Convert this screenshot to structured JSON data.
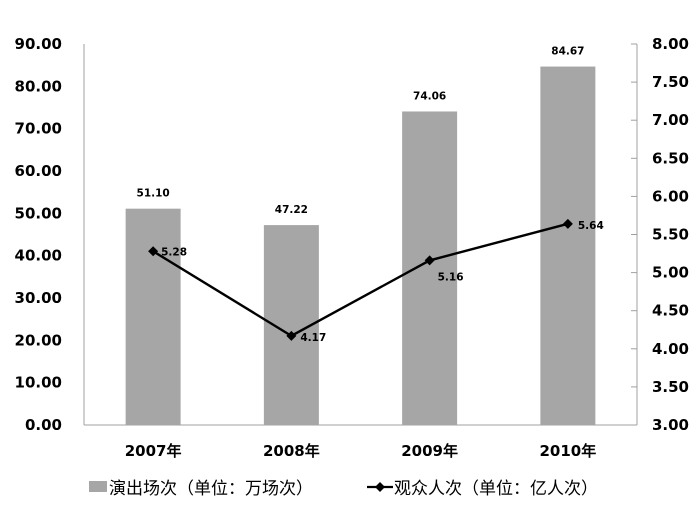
{
  "chart_data": {
    "type": "bar+line",
    "title": "",
    "categories": [
      "2007年",
      "2008年",
      "2009年",
      "2010年"
    ],
    "series": [
      {
        "name": "演出场次（单位：万场次）",
        "type": "bar",
        "axis": "left",
        "values": [
          51.1,
          47.22,
          74.06,
          84.67
        ],
        "labels": [
          "51.10",
          "47.22",
          "74.06",
          "84.67"
        ],
        "color": "#a6a6a6"
      },
      {
        "name": "观众人次（单位：亿人次）",
        "type": "line",
        "axis": "right",
        "marker": "diamond",
        "values": [
          5.28,
          4.17,
          5.16,
          5.64
        ],
        "labels": [
          "5.28",
          "4.17",
          "5.16",
          "5.64"
        ],
        "color": "#000000"
      }
    ],
    "left_axis": {
      "ylim": [
        0,
        90
      ],
      "ticks": [
        "0.00",
        "10.00",
        "20.00",
        "30.00",
        "40.00",
        "50.00",
        "60.00",
        "70.00",
        "80.00",
        "90.00"
      ]
    },
    "right_axis": {
      "ylim": [
        3,
        8
      ],
      "ticks": [
        "3.00",
        "3.50",
        "4.00",
        "4.50",
        "5.00",
        "5.50",
        "6.00",
        "6.50",
        "7.00",
        "7.50",
        "8.00"
      ]
    },
    "xlabel": "",
    "ylabel": "",
    "grid": false,
    "legend_position": "bottom"
  },
  "legend": {
    "bar_label": "演出场次（单位：万场次）",
    "line_label": "观众人次（单位：亿人次）"
  }
}
